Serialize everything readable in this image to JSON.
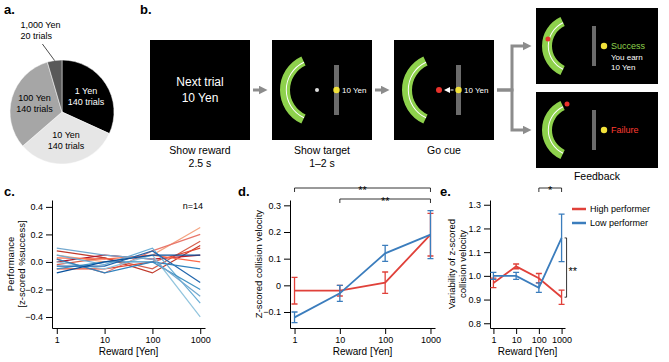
{
  "chart_data": [
    {
      "type": "pie",
      "title": "a.",
      "categories": [
        "1 Yen",
        "10 Yen",
        "100 Yen",
        "1,000 Yen"
      ],
      "values": [
        140,
        140,
        140,
        20
      ],
      "value_labels": [
        "140 trials",
        "140 trials",
        "140 trials",
        "20 trials"
      ],
      "colors": [
        "#000000",
        "#e6e6e6",
        "#a6a6a6",
        "#595959"
      ],
      "data_labels": true
    },
    {
      "type": "line",
      "title": "c.",
      "x_label": "Reward [Yen]",
      "y_label": [
        "Performance",
        "[z-scored %success]"
      ],
      "categories": [
        "1",
        "10",
        "100",
        "1000"
      ],
      "ylim": [
        -0.48,
        0.45
      ],
      "yticks": [
        {
          "value": -0.4,
          "label": "−0.4"
        },
        {
          "value": -0.2,
          "label": "−0.2"
        },
        {
          "value": 0,
          "label": "0.0"
        },
        0.2,
        0.4
      ],
      "annotations": [
        {
          "text": "n=14"
        }
      ],
      "series": [
        {
          "color": "#f4a582",
          "values": [
            0.05,
            0.0,
            0.05,
            0.25
          ]
        },
        {
          "color": "#e8776b",
          "values": [
            0.02,
            -0.08,
            0.08,
            0.2
          ]
        },
        {
          "color": "#d6604d",
          "values": [
            -0.02,
            0.03,
            -0.05,
            0.15
          ]
        },
        {
          "color": "#c0392b",
          "values": [
            0.08,
            0.03,
            -0.08,
            0.12
          ]
        },
        {
          "color": "#b2182b",
          "values": [
            0.0,
            0.05,
            0.02,
            0.05
          ]
        },
        {
          "color": "#e34a33",
          "values": [
            -0.05,
            -0.05,
            0.0,
            0.1
          ]
        },
        {
          "color": "#fb6a4a",
          "values": [
            0.03,
            0.02,
            0.05,
            0.0
          ]
        },
        {
          "color": "#92c5de",
          "values": [
            0.0,
            -0.05,
            0.05,
            -0.4
          ]
        },
        {
          "color": "#6baed6",
          "values": [
            0.05,
            -0.02,
            0.1,
            -0.3
          ]
        },
        {
          "color": "#4393c3",
          "values": [
            -0.05,
            0.0,
            0.0,
            -0.2
          ]
        },
        {
          "color": "#2166ac",
          "values": [
            -0.03,
            -0.03,
            0.08,
            -0.15
          ]
        },
        {
          "color": "#3182bd",
          "values": [
            0.02,
            -0.08,
            0.0,
            -0.05
          ]
        },
        {
          "color": "#74a9cf",
          "values": [
            0.1,
            0.05,
            0.02,
            -0.25
          ]
        },
        {
          "color": "#08519c",
          "values": [
            -0.08,
            0.0,
            0.05,
            0.05
          ]
        }
      ]
    },
    {
      "type": "line",
      "title": "d.",
      "x_label": "Reward [Yen]",
      "y_label": "Z-scored collision velocity",
      "categories": [
        "1",
        "10",
        "100",
        "1000"
      ],
      "ylim": [
        -0.16,
        0.32
      ],
      "yticks": [
        {
          "value": -0.1,
          "label": "−0.1"
        },
        0,
        0.1,
        0.2,
        0.3
      ],
      "annotations": [
        {
          "text": "**",
          "from": "1",
          "to": "1000"
        },
        {
          "text": "**",
          "from": "10",
          "to": "1000"
        }
      ],
      "series": [
        {
          "color": "#e0413a",
          "values": [
            -0.02,
            -0.02,
            0.01,
            0.19
          ],
          "errors": [
            0.05,
            0.02,
            0.04,
            0.08
          ]
        },
        {
          "color": "#3b7dbd",
          "values": [
            -0.12,
            -0.03,
            0.12,
            0.19
          ],
          "errors": [
            0.02,
            0.03,
            0.03,
            0.09
          ]
        }
      ]
    },
    {
      "type": "line",
      "title": "e.",
      "x_label": "Reward [Yen]",
      "y_label": [
        "Variability of z-scored",
        "collision velocity"
      ],
      "categories": [
        "1",
        "10",
        "100",
        "1000"
      ],
      "ylim": [
        0.78,
        1.32
      ],
      "yticks": [
        0.8,
        0.9,
        {
          "value": 1,
          "label": "1.0"
        },
        1.1,
        1.2,
        1.3
      ],
      "legend": "right",
      "annotations": [
        {
          "text": "*",
          "from": "100",
          "to": "1000"
        },
        {
          "text": "**",
          "from": "1000",
          "to": "1000"
        }
      ],
      "series": [
        {
          "name": "High performer",
          "color": "#e0413a",
          "values": [
            0.97,
            1.04,
            0.99,
            0.91
          ],
          "errors": [
            0.02,
            0.01,
            0.02,
            0.03
          ]
        },
        {
          "name": "Low performer",
          "color": "#3b7dbd",
          "values": [
            1.0,
            1.0,
            0.95,
            1.16
          ],
          "errors": [
            0.015,
            0.015,
            0.02,
            0.1
          ]
        }
      ]
    }
  ],
  "diagram": {
    "title": "b.",
    "screens": [
      {
        "lines": [
          "Next trial",
          "10 Yen"
        ],
        "caption": [
          "Show reward",
          "2.5 s"
        ]
      },
      {
        "reward": "10 Yen",
        "caption": [
          "Show target",
          "1–2 s"
        ]
      },
      {
        "reward": "10 Yen",
        "caption": [
          "Go cue"
        ]
      }
    ],
    "feedback": {
      "caption": "Feedback",
      "success": {
        "status": "Success",
        "message": [
          "You earn",
          "10 Yen"
        ]
      },
      "failure": {
        "status": "Failure"
      }
    }
  }
}
